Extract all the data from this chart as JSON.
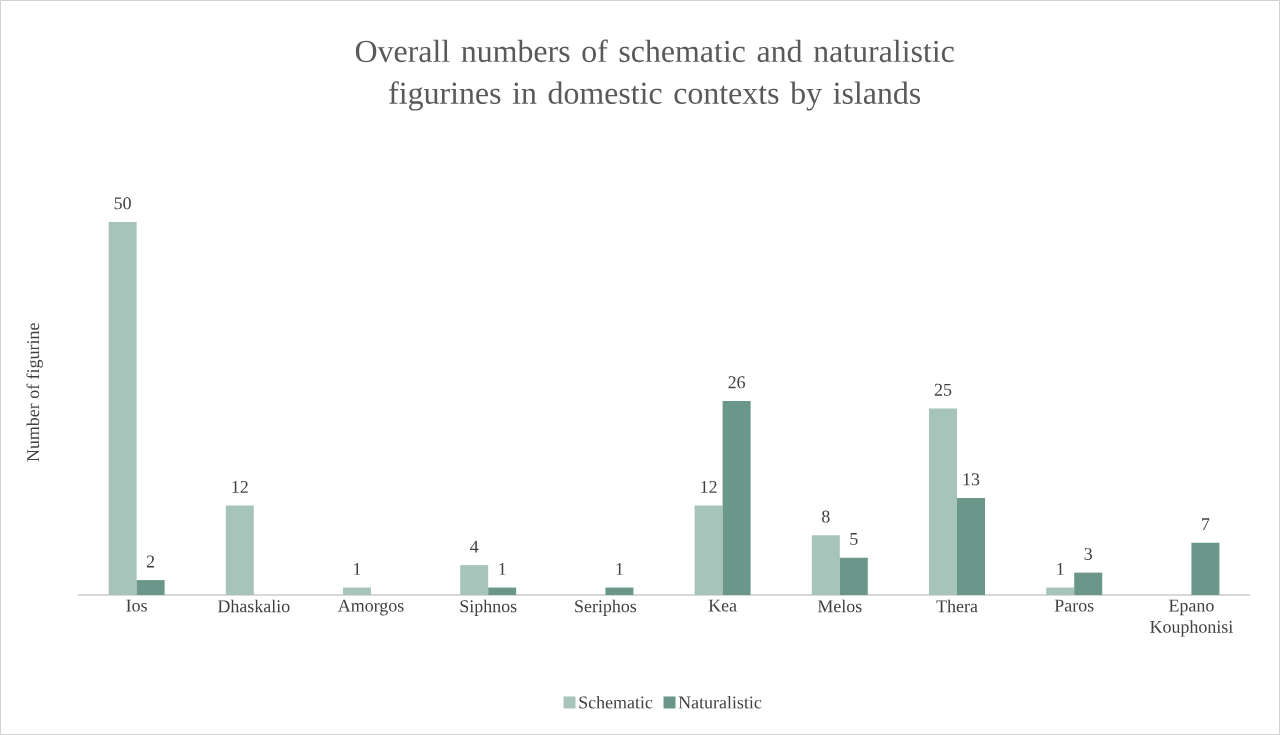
{
  "chart_data": {
    "type": "bar",
    "title": "Overall numbers of schematic and naturalistic figurines in domestic contexts by islands",
    "ylabel": "Number of figurine",
    "categories": [
      "Ios",
      "Dhaskalio",
      "Amorgos",
      "Siphnos",
      "Seriphos",
      "Kea",
      "Melos",
      "Thera",
      "Paros",
      "Epano Kouphonisi"
    ],
    "series": [
      {
        "name": "Schematic",
        "color": "#a7c4bb",
        "values": [
          50,
          12,
          1,
          4,
          null,
          12,
          8,
          25,
          1,
          null
        ]
      },
      {
        "name": "Naturalistic",
        "color": "#6b978b",
        "values": [
          2,
          null,
          null,
          1,
          1,
          26,
          5,
          13,
          3,
          7
        ]
      }
    ],
    "data_labels": true,
    "legend": "bottom"
  }
}
